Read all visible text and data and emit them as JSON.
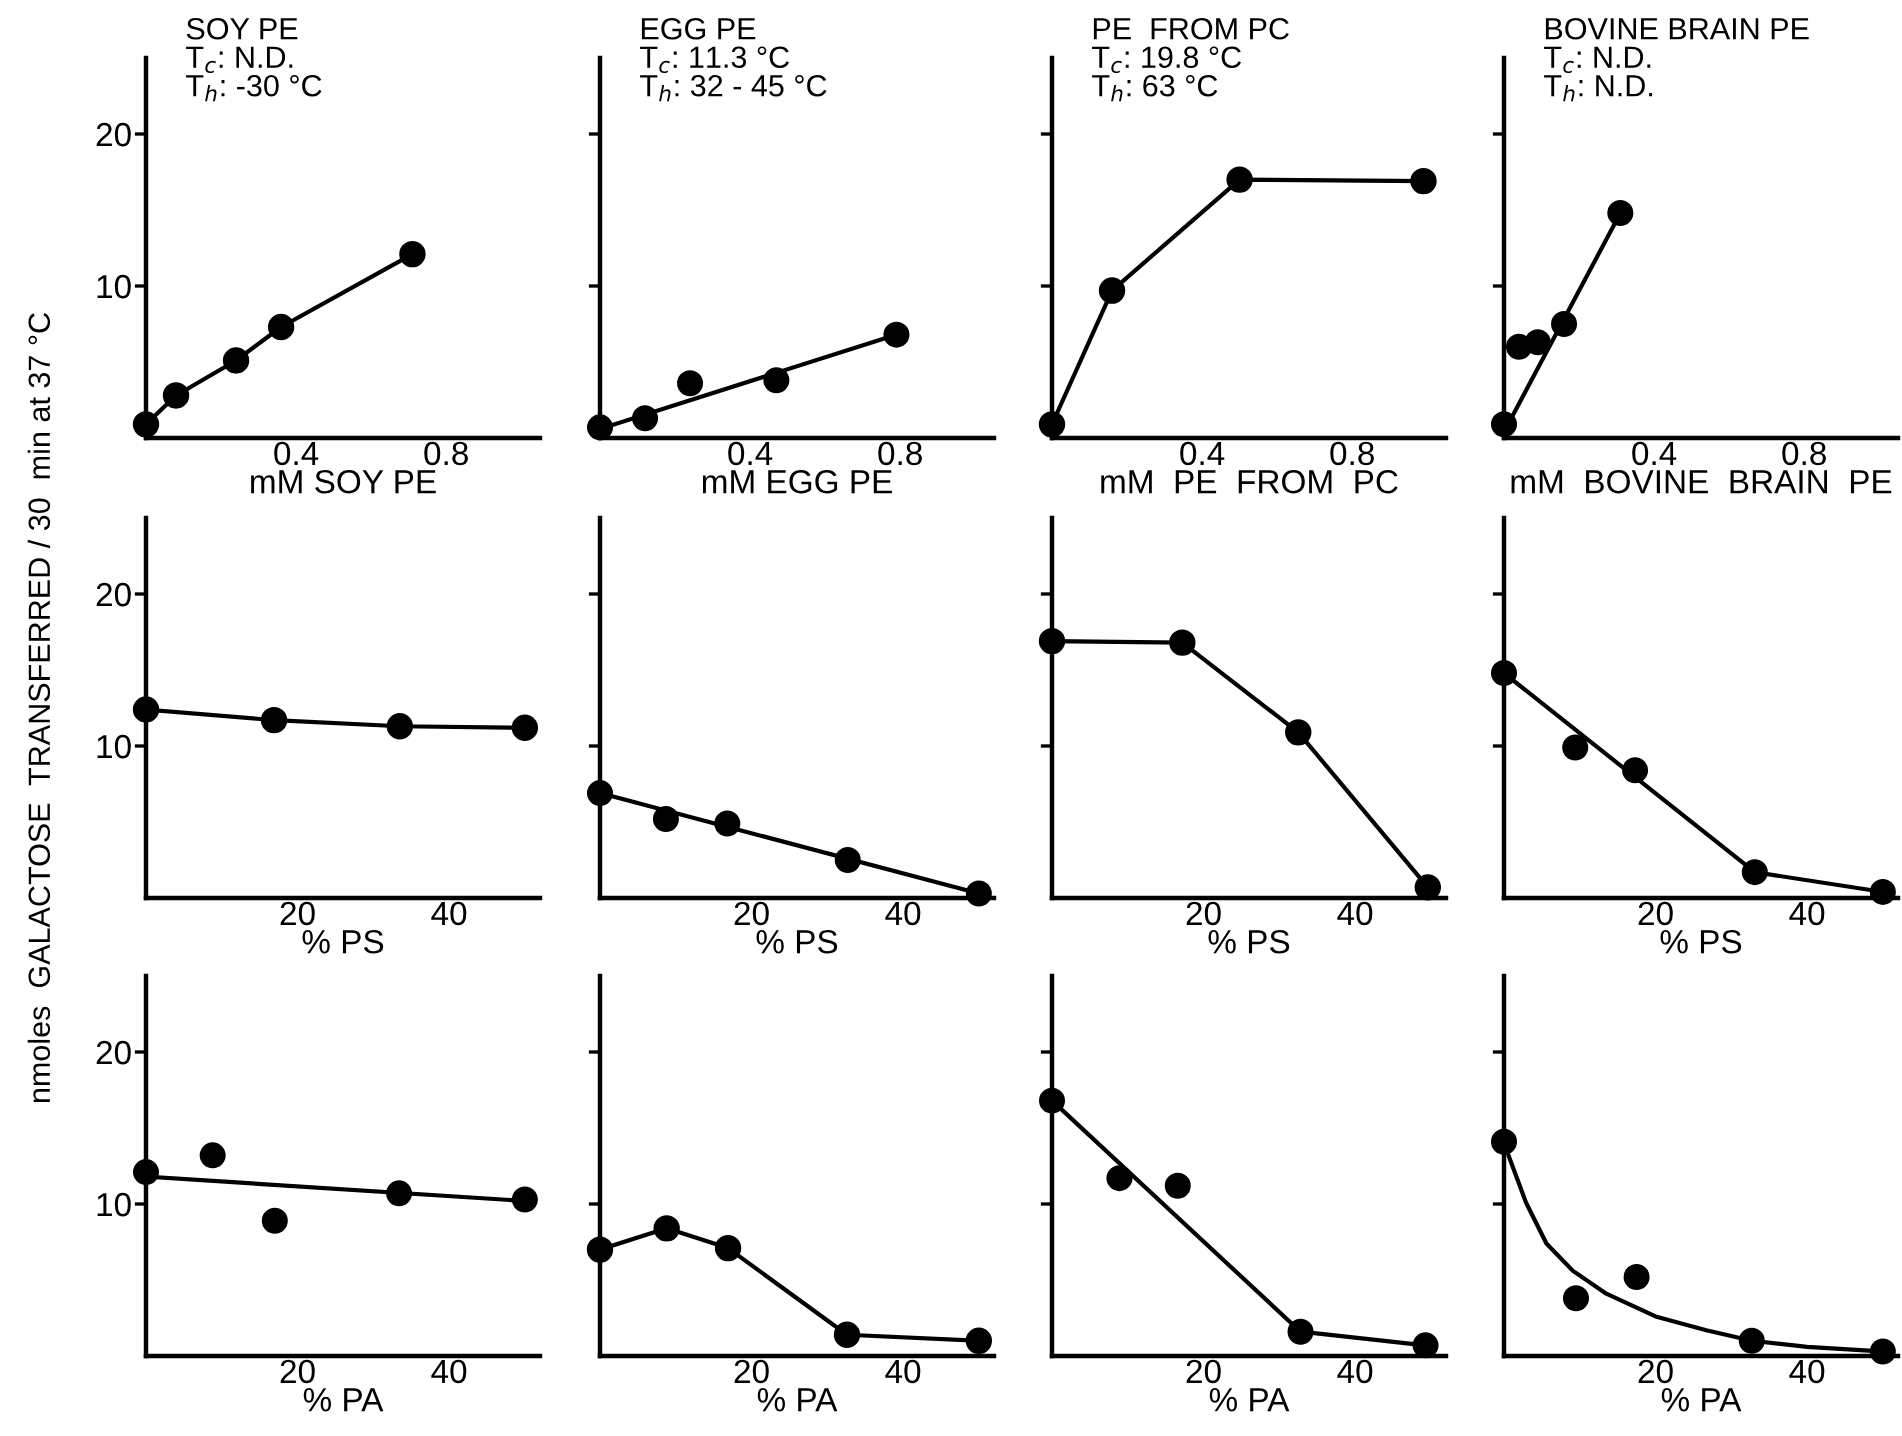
{
  "chart_data": [
    {
      "type": "line",
      "title": "SOY PE",
      "annotations": [
        "T$_{c}$: N.D.",
        "T$_{h}$: -30 °C"
      ],
      "xlabel": "mM SOY PE",
      "xlim": [
        0,
        1.05
      ],
      "xticks": [
        0.4,
        0.8
      ],
      "ylim": [
        0,
        25
      ],
      "yticks": [
        10,
        20
      ],
      "grid": false,
      "legend": false,
      "series": [
        {
          "type": "line",
          "marker": "circle",
          "color": "#000000",
          "x": [
            0,
            0.08,
            0.24,
            0.36,
            0.71
          ],
          "values": [
            0.9,
            2.8,
            5.1,
            7.3,
            12.1
          ]
        }
      ]
    },
    {
      "type": "line",
      "title": "EGG PE",
      "annotations": [
        "T$_{c}$: 11.3 °C",
        "T$_{h}$: 32 - 45 °C"
      ],
      "xlabel": "mM EGG PE",
      "xlim": [
        0,
        1.05
      ],
      "xticks": [
        0.4,
        0.8
      ],
      "ylim": [
        0,
        25
      ],
      "yticks": [
        10,
        20
      ],
      "tick_labels": "x",
      "grid": false,
      "legend": false,
      "series": [
        {
          "type": "scatter",
          "marker": "circle",
          "color": "#000000",
          "x": [
            0,
            0.12,
            0.24,
            0.47,
            0.79
          ],
          "values": [
            0.7,
            1.3,
            3.6,
            3.8,
            6.8
          ]
        },
        {
          "type": "line",
          "marker": "none",
          "color": "#000000",
          "x": [
            0,
            0.79
          ],
          "values": [
            0.6,
            6.8
          ]
        }
      ]
    },
    {
      "type": "line",
      "title": "PE  FROM PC",
      "annotations": [
        "T$_{c}$: 19.8 °C",
        "T$_{h}$: 63 °C"
      ],
      "xlabel": "mM  PE  FROM  PC",
      "xlim": [
        0,
        1.05
      ],
      "xticks": [
        0.4,
        0.8
      ],
      "ylim": [
        0,
        25
      ],
      "yticks": [
        10,
        20
      ],
      "tick_labels": "x",
      "grid": false,
      "legend": false,
      "series": [
        {
          "type": "line",
          "marker": "circle",
          "color": "#000000",
          "x": [
            0,
            0.16,
            0.5,
            0.99
          ],
          "values": [
            0.9,
            9.7,
            17.0,
            16.9
          ]
        }
      ]
    },
    {
      "type": "line",
      "title": "BOVINE BRAIN PE",
      "annotations": [
        "T$_{c}$: N.D.",
        "T$_{h}$: N.D."
      ],
      "xlabel": "mM  BOVINE  BRAIN  PE",
      "xlim": [
        0,
        1.05
      ],
      "xticks": [
        0.4,
        0.8
      ],
      "ylim": [
        0,
        25
      ],
      "yticks": [
        10,
        20
      ],
      "tick_labels": "x",
      "grid": false,
      "legend": false,
      "series": [
        {
          "type": "scatter",
          "marker": "circle",
          "color": "#000000",
          "x": [
            0,
            0.04,
            0.09,
            0.16,
            0.31
          ],
          "values": [
            0.9,
            6.0,
            6.3,
            7.5,
            14.8
          ]
        },
        {
          "type": "line",
          "marker": "none",
          "color": "#000000",
          "x": [
            0,
            0.31
          ],
          "values": [
            0.4,
            14.8
          ]
        }
      ]
    },
    {
      "type": "line",
      "xlabel": "% PS",
      "ylabel": "nmoles  GALACTOSE  TRANSFERRED / 30  min at 37 °C",
      "xlim": [
        0,
        52
      ],
      "xticks": [
        20,
        40
      ],
      "ylim": [
        0,
        25
      ],
      "yticks": [
        10,
        20
      ],
      "grid": false,
      "legend": false,
      "series": [
        {
          "type": "line",
          "marker": "circle",
          "color": "#000000",
          "x": [
            0,
            16.9,
            33.5,
            50
          ],
          "values": [
            12.4,
            11.7,
            11.3,
            11.2
          ]
        }
      ]
    },
    {
      "type": "line",
      "xlabel": "% PS",
      "xlim": [
        0,
        52
      ],
      "xticks": [
        20,
        40
      ],
      "ylim": [
        0,
        25
      ],
      "yticks": [
        10,
        20
      ],
      "tick_labels": "x",
      "grid": false,
      "legend": false,
      "series": [
        {
          "type": "scatter",
          "marker": "circle",
          "color": "#000000",
          "x": [
            0,
            8.7,
            16.8,
            32.7,
            50
          ],
          "values": [
            6.9,
            5.2,
            4.9,
            2.5,
            0.3
          ]
        },
        {
          "type": "line",
          "marker": "none",
          "color": "#000000",
          "x": [
            0,
            50
          ],
          "values": [
            6.9,
            0.3
          ]
        }
      ]
    },
    {
      "type": "line",
      "xlabel": "% PS",
      "xlim": [
        0,
        52
      ],
      "xticks": [
        20,
        40
      ],
      "ylim": [
        0,
        25
      ],
      "yticks": [
        10,
        20
      ],
      "tick_labels": "x",
      "grid": false,
      "legend": false,
      "series": [
        {
          "type": "line",
          "marker": "circle",
          "color": "#000000",
          "x": [
            0,
            17.2,
            32.5,
            49.6
          ],
          "values": [
            16.9,
            16.8,
            10.9,
            0.7
          ]
        }
      ]
    },
    {
      "type": "line",
      "xlabel": "% PS",
      "xlim": [
        0,
        52
      ],
      "xticks": [
        20,
        40
      ],
      "ylim": [
        0,
        25
      ],
      "yticks": [
        10,
        20
      ],
      "tick_labels": "x",
      "grid": false,
      "legend": false,
      "series": [
        {
          "type": "scatter",
          "marker": "circle",
          "color": "#000000",
          "x": [
            0,
            9.4,
            17.3,
            33.1,
            50
          ],
          "values": [
            14.8,
            9.9,
            8.4,
            1.7,
            0.4
          ]
        },
        {
          "type": "line",
          "marker": "none",
          "color": "#000000",
          "x": [
            0,
            33.1,
            50
          ],
          "values": [
            14.8,
            1.7,
            0.4
          ]
        }
      ]
    },
    {
      "type": "line",
      "xlabel": "% PA",
      "xlim": [
        0,
        52
      ],
      "xticks": [
        20,
        40
      ],
      "ylim": [
        0,
        25
      ],
      "yticks": [
        10,
        20
      ],
      "grid": false,
      "legend": false,
      "series": [
        {
          "type": "scatter",
          "marker": "circle",
          "color": "#000000",
          "x": [
            0,
            8.8,
            17,
            33.4,
            50
          ],
          "values": [
            12.1,
            13.2,
            8.9,
            10.7,
            10.3
          ]
        },
        {
          "type": "line",
          "marker": "none",
          "color": "#000000",
          "x": [
            0,
            50
          ],
          "values": [
            11.8,
            10.2
          ]
        }
      ]
    },
    {
      "type": "line",
      "xlabel": "% PA",
      "xlim": [
        0,
        52
      ],
      "xticks": [
        20,
        40
      ],
      "ylim": [
        0,
        25
      ],
      "yticks": [
        10,
        20
      ],
      "tick_labels": "x",
      "grid": false,
      "legend": false,
      "series": [
        {
          "type": "line",
          "marker": "circle",
          "color": "#000000",
          "x": [
            0,
            8.8,
            16.9,
            32.6,
            50
          ],
          "values": [
            7.0,
            8.4,
            7.1,
            1.4,
            1.0
          ]
        }
      ]
    },
    {
      "type": "line",
      "xlabel": "% PA",
      "xlim": [
        0,
        52
      ],
      "xticks": [
        20,
        40
      ],
      "ylim": [
        0,
        25
      ],
      "yticks": [
        10,
        20
      ],
      "tick_labels": "x",
      "grid": false,
      "legend": false,
      "series": [
        {
          "type": "scatter",
          "marker": "circle",
          "color": "#000000",
          "x": [
            0,
            8.9,
            16.6,
            32.8,
            49.3
          ],
          "values": [
            16.8,
            11.7,
            11.2,
            1.6,
            0.7
          ]
        },
        {
          "type": "line",
          "marker": "none",
          "color": "#000000",
          "x": [
            0,
            32.8,
            49.3
          ],
          "values": [
            16.8,
            1.6,
            0.7
          ]
        }
      ]
    },
    {
      "type": "line",
      "xlabel": "% PA",
      "xlim": [
        0,
        52
      ],
      "xticks": [
        20,
        40
      ],
      "ylim": [
        0,
        25
      ],
      "yticks": [
        10,
        20
      ],
      "tick_labels": "x",
      "grid": false,
      "legend": false,
      "series": [
        {
          "type": "scatter",
          "marker": "circle",
          "color": "#000000",
          "x": [
            0,
            9.5,
            17.5,
            32.7,
            50
          ],
          "values": [
            14.1,
            3.8,
            5.2,
            1.0,
            0.3
          ]
        },
        {
          "type": "line",
          "marker": "none",
          "color": "#000000",
          "x": [
            0,
            2.9,
            5.6,
            9.1,
            13.5,
            20,
            26.7,
            32.7,
            40,
            50
          ],
          "values": [
            14.0,
            10.1,
            7.4,
            5.6,
            4.1,
            2.6,
            1.7,
            1.0,
            0.6,
            0.3
          ]
        }
      ]
    }
  ]
}
